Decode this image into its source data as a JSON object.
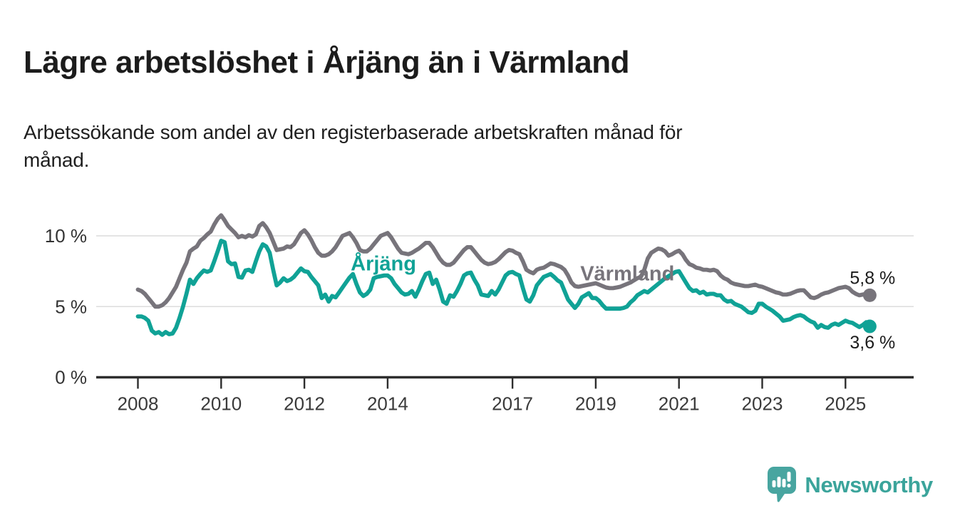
{
  "header": {
    "title": "Lägre arbetslöshet i Årjäng än i Värmland",
    "subtitle": "Arbetssökande som andel av den registerbaserade arbetskraften månad för månad."
  },
  "chart_data": {
    "type": "line",
    "unit": "%",
    "frequency": "monthly",
    "x_start": "2008-01",
    "x_end": "2025-08",
    "ylim": [
      0,
      12
    ],
    "grid": "horizontal",
    "grid_color": "#dcdcdc",
    "axis_color": "#2d2d2d",
    "tick_label_color": "#3a3a3a",
    "yticks": [
      {
        "value": 0,
        "label": "0 %"
      },
      {
        "value": 5,
        "label": "5 %"
      },
      {
        "value": 10,
        "label": "10 %"
      }
    ],
    "xtick_years": [
      2008,
      2010,
      2012,
      2014,
      2017,
      2019,
      2021,
      2023,
      2025
    ],
    "series": [
      {
        "name": "Årjäng",
        "slug": "arjang",
        "color": "#10a296",
        "end_label": "3,6 %",
        "end_label_placement": "below",
        "label_pos": {
          "year": 2013.9,
          "value": 7.55
        },
        "values": [
          4.3,
          4.3,
          4.2,
          4.0,
          3.3,
          3.1,
          3.2,
          3.0,
          3.2,
          3.05,
          3.1,
          3.5,
          4.2,
          5.0,
          5.9,
          6.9,
          6.6,
          7.0,
          7.3,
          7.55,
          7.45,
          7.55,
          8.2,
          8.9,
          9.65,
          9.55,
          8.2,
          8.0,
          8.05,
          7.1,
          7.05,
          7.55,
          7.6,
          7.45,
          8.2,
          8.9,
          9.4,
          9.25,
          8.8,
          7.6,
          6.5,
          6.7,
          7.0,
          6.8,
          6.9,
          7.1,
          7.4,
          7.7,
          7.5,
          7.45,
          7.1,
          6.8,
          6.5,
          5.6,
          5.85,
          5.35,
          5.75,
          5.65,
          6.0,
          6.35,
          6.7,
          7.05,
          7.3,
          6.6,
          6.0,
          5.75,
          5.9,
          6.2,
          7.0,
          7.1,
          7.15,
          7.2,
          7.2,
          7.0,
          6.6,
          6.3,
          6.0,
          5.85,
          5.9,
          6.1,
          5.7,
          6.2,
          6.8,
          7.3,
          7.4,
          6.6,
          6.9,
          6.2,
          5.35,
          5.2,
          5.8,
          5.7,
          6.1,
          6.6,
          7.2,
          7.35,
          7.4,
          6.9,
          6.5,
          5.85,
          5.8,
          5.75,
          6.1,
          5.85,
          6.2,
          6.7,
          7.2,
          7.4,
          7.45,
          7.3,
          7.2,
          6.3,
          5.5,
          5.35,
          5.8,
          6.5,
          6.8,
          7.1,
          7.2,
          7.3,
          7.1,
          6.85,
          6.7,
          6.1,
          5.5,
          5.2,
          4.9,
          5.2,
          5.65,
          5.8,
          5.95,
          5.6,
          5.6,
          5.4,
          5.1,
          4.85,
          4.85,
          4.85,
          4.85,
          4.85,
          4.9,
          5.0,
          5.3,
          5.5,
          5.8,
          5.95,
          6.1,
          6.0,
          6.2,
          6.4,
          6.6,
          6.8,
          7.0,
          7.15,
          7.3,
          7.45,
          7.5,
          7.1,
          6.7,
          6.3,
          6.1,
          6.15,
          5.95,
          6.05,
          5.85,
          5.9,
          5.9,
          5.8,
          5.8,
          5.5,
          5.35,
          5.4,
          5.2,
          5.1,
          5.0,
          4.8,
          4.6,
          4.55,
          4.7,
          5.2,
          5.2,
          5.0,
          4.85,
          4.7,
          4.5,
          4.3,
          4.0,
          4.05,
          4.1,
          4.25,
          4.35,
          4.4,
          4.3,
          4.1,
          3.95,
          3.85,
          3.5,
          3.7,
          3.55,
          3.5,
          3.7,
          3.8,
          3.7,
          3.85,
          4.0,
          3.9,
          3.85,
          3.7,
          3.55,
          3.7,
          3.9,
          3.6
        ]
      },
      {
        "name": "Värmland",
        "slug": "varmland",
        "color": "#77747b",
        "end_label": "5,8 %",
        "end_label_placement": "above",
        "label_pos": {
          "year": 2019.76,
          "value": 6.85
        },
        "values": [
          6.2,
          6.1,
          5.9,
          5.6,
          5.3,
          5.0,
          5.0,
          5.1,
          5.3,
          5.6,
          6.0,
          6.4,
          7.0,
          7.6,
          8.1,
          8.9,
          9.1,
          9.25,
          9.65,
          9.85,
          10.1,
          10.3,
          10.8,
          11.2,
          11.45,
          11.1,
          10.7,
          10.45,
          10.2,
          9.9,
          10.0,
          9.9,
          10.05,
          9.95,
          10.1,
          10.7,
          10.9,
          10.6,
          10.2,
          9.6,
          9.0,
          9.05,
          9.1,
          9.25,
          9.2,
          9.4,
          9.8,
          10.2,
          10.4,
          10.1,
          9.7,
          9.2,
          8.8,
          8.6,
          8.6,
          8.7,
          8.9,
          9.2,
          9.6,
          10.0,
          10.1,
          10.2,
          9.9,
          9.5,
          9.0,
          8.9,
          8.9,
          9.1,
          9.4,
          9.7,
          10.0,
          10.1,
          10.2,
          9.9,
          9.5,
          9.1,
          8.8,
          8.75,
          8.7,
          8.8,
          8.95,
          9.1,
          9.3,
          9.5,
          9.5,
          9.2,
          8.8,
          8.4,
          8.1,
          7.95,
          7.95,
          8.1,
          8.4,
          8.7,
          9.0,
          9.2,
          9.2,
          8.9,
          8.6,
          8.3,
          8.1,
          8.0,
          8.05,
          8.15,
          8.35,
          8.6,
          8.85,
          9.0,
          8.95,
          8.8,
          8.7,
          8.2,
          7.6,
          7.45,
          7.35,
          7.6,
          7.7,
          7.75,
          7.9,
          8.05,
          8.0,
          7.9,
          7.8,
          7.6,
          7.2,
          6.7,
          6.45,
          6.4,
          6.45,
          6.5,
          6.55,
          6.6,
          6.65,
          6.55,
          6.45,
          6.35,
          6.3,
          6.3,
          6.35,
          6.4,
          6.5,
          6.6,
          6.7,
          6.85,
          7.0,
          7.1,
          7.6,
          8.4,
          8.8,
          8.95,
          9.1,
          9.05,
          8.9,
          8.6,
          8.7,
          8.85,
          8.95,
          8.7,
          8.3,
          8.0,
          7.9,
          7.75,
          7.7,
          7.6,
          7.6,
          7.55,
          7.6,
          7.5,
          7.2,
          7.0,
          6.9,
          6.7,
          6.6,
          6.55,
          6.5,
          6.45,
          6.45,
          6.5,
          6.55,
          6.45,
          6.4,
          6.3,
          6.2,
          6.1,
          6.0,
          5.95,
          5.85,
          5.85,
          5.9,
          6.0,
          6.1,
          6.15,
          6.15,
          5.9,
          5.65,
          5.6,
          5.7,
          5.85,
          5.95,
          6.0,
          6.1,
          6.2,
          6.3,
          6.35,
          6.4,
          6.3,
          6.05,
          5.9,
          5.8,
          5.85,
          5.9,
          5.8
        ]
      }
    ]
  },
  "footer": {
    "brand": "Newsworthy",
    "brand_color": "#3ba49b",
    "icon_color": "#48a5a0"
  }
}
